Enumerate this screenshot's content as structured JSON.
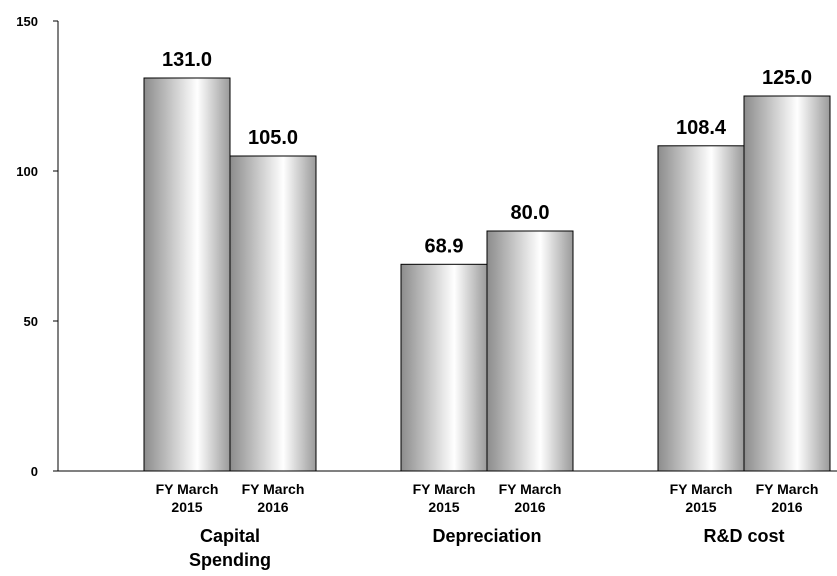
{
  "chart_data": {
    "type": "bar",
    "title": "",
    "xlabel": "",
    "ylabel": "",
    "ylim": [
      0,
      150
    ],
    "yticks": [
      0,
      50,
      100,
      150
    ],
    "grid": false,
    "legend": "none",
    "groups": [
      {
        "label_lines": [
          "Capital",
          "Spending"
        ],
        "bars": [
          {
            "label_lines": [
              "FY March",
              "2015"
            ],
            "value": 131.0,
            "value_label": "131.0"
          },
          {
            "label_lines": [
              "FY March",
              "2016"
            ],
            "value": 105.0,
            "value_label": "105.0"
          }
        ]
      },
      {
        "label_lines": [
          "Depreciation"
        ],
        "bars": [
          {
            "label_lines": [
              "FY March",
              "2015"
            ],
            "value": 68.9,
            "value_label": "68.9"
          },
          {
            "label_lines": [
              "FY March",
              "2016"
            ],
            "value": 80.0,
            "value_label": "80.0"
          }
        ]
      },
      {
        "label_lines": [
          "R&D cost"
        ],
        "bars": [
          {
            "label_lines": [
              "FY March",
              "2015"
            ],
            "value": 108.4,
            "value_label": "108.4"
          },
          {
            "label_lines": [
              "FY March",
              "2016"
            ],
            "value": 125.0,
            "value_label": "125.0"
          }
        ]
      }
    ],
    "colors": {
      "bar_edge": "#000000",
      "bar_dark": "#8c8c8c",
      "bar_light": "#ffffff",
      "axis": "#000000"
    }
  }
}
